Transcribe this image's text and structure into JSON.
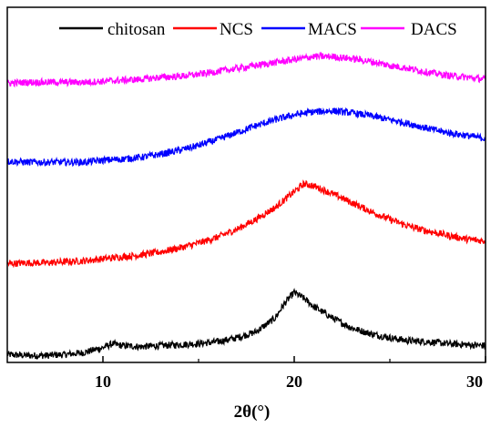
{
  "chart_data": {
    "type": "line",
    "xlabel": "2θ(°)",
    "ylabel": "",
    "xlim": [
      5,
      30
    ],
    "xticks": [
      10,
      20,
      30
    ],
    "yaxis_ticks": false,
    "legend_position": "top",
    "series": [
      {
        "name": "chitosan",
        "color": "#000000",
        "points": [
          [
            5,
            0.03
          ],
          [
            6,
            0.02
          ],
          [
            7,
            0.02
          ],
          [
            8,
            0.03
          ],
          [
            9,
            0.05
          ],
          [
            10,
            0.1
          ],
          [
            10.5,
            0.14
          ],
          [
            11,
            0.12
          ],
          [
            12,
            0.11
          ],
          [
            13,
            0.12
          ],
          [
            14,
            0.13
          ],
          [
            15,
            0.14
          ],
          [
            16,
            0.16
          ],
          [
            17,
            0.2
          ],
          [
            18,
            0.26
          ],
          [
            19,
            0.4
          ],
          [
            19.5,
            0.55
          ],
          [
            20,
            0.66
          ],
          [
            20.5,
            0.6
          ],
          [
            21,
            0.52
          ],
          [
            22,
            0.4
          ],
          [
            23,
            0.3
          ],
          [
            24,
            0.24
          ],
          [
            25,
            0.2
          ],
          [
            26,
            0.17
          ],
          [
            27,
            0.16
          ],
          [
            28,
            0.14
          ],
          [
            29,
            0.13
          ],
          [
            30,
            0.12
          ]
        ]
      },
      {
        "name": "NCS",
        "color": "#ff0000",
        "points": [
          [
            5,
            0.95
          ],
          [
            6,
            0.96
          ],
          [
            7,
            0.96
          ],
          [
            8,
            0.97
          ],
          [
            9,
            0.98
          ],
          [
            10,
            1.0
          ],
          [
            11,
            1.02
          ],
          [
            12,
            1.04
          ],
          [
            13,
            1.07
          ],
          [
            14,
            1.11
          ],
          [
            15,
            1.16
          ],
          [
            16,
            1.22
          ],
          [
            17,
            1.3
          ],
          [
            18,
            1.4
          ],
          [
            19,
            1.52
          ],
          [
            20,
            1.68
          ],
          [
            20.5,
            1.76
          ],
          [
            21,
            1.74
          ],
          [
            22,
            1.66
          ],
          [
            23,
            1.57
          ],
          [
            24,
            1.48
          ],
          [
            25,
            1.4
          ],
          [
            26,
            1.33
          ],
          [
            27,
            1.28
          ],
          [
            28,
            1.24
          ],
          [
            29,
            1.2
          ],
          [
            30,
            1.18
          ]
        ]
      },
      {
        "name": "MACS",
        "color": "#0000ff",
        "points": [
          [
            5,
            1.99
          ],
          [
            6,
            1.98
          ],
          [
            7,
            1.98
          ],
          [
            8,
            1.98
          ],
          [
            9,
            1.98
          ],
          [
            10,
            2.0
          ],
          [
            11,
            2.01
          ],
          [
            12,
            2.03
          ],
          [
            13,
            2.06
          ],
          [
            14,
            2.1
          ],
          [
            15,
            2.15
          ],
          [
            16,
            2.21
          ],
          [
            17,
            2.28
          ],
          [
            18,
            2.35
          ],
          [
            19,
            2.41
          ],
          [
            20,
            2.46
          ],
          [
            21,
            2.49
          ],
          [
            22,
            2.5
          ],
          [
            23,
            2.48
          ],
          [
            24,
            2.45
          ],
          [
            25,
            2.41
          ],
          [
            26,
            2.37
          ],
          [
            27,
            2.32
          ],
          [
            28,
            2.28
          ],
          [
            29,
            2.25
          ],
          [
            30,
            2.22
          ]
        ]
      },
      {
        "name": "DACS",
        "color": "#ff00ff",
        "points": [
          [
            5,
            2.78
          ],
          [
            6,
            2.79
          ],
          [
            7,
            2.79
          ],
          [
            8,
            2.79
          ],
          [
            9,
            2.79
          ],
          [
            10,
            2.8
          ],
          [
            11,
            2.81
          ],
          [
            12,
            2.82
          ],
          [
            13,
            2.84
          ],
          [
            14,
            2.85
          ],
          [
            15,
            2.87
          ],
          [
            16,
            2.9
          ],
          [
            17,
            2.93
          ],
          [
            18,
            2.96
          ],
          [
            19,
            2.99
          ],
          [
            20,
            3.02
          ],
          [
            21,
            3.05
          ],
          [
            22,
            3.05
          ],
          [
            23,
            3.03
          ],
          [
            24,
            3.0
          ],
          [
            25,
            2.96
          ],
          [
            26,
            2.93
          ],
          [
            27,
            2.89
          ],
          [
            28,
            2.86
          ],
          [
            29,
            2.84
          ],
          [
            30,
            2.82
          ]
        ]
      }
    ]
  }
}
